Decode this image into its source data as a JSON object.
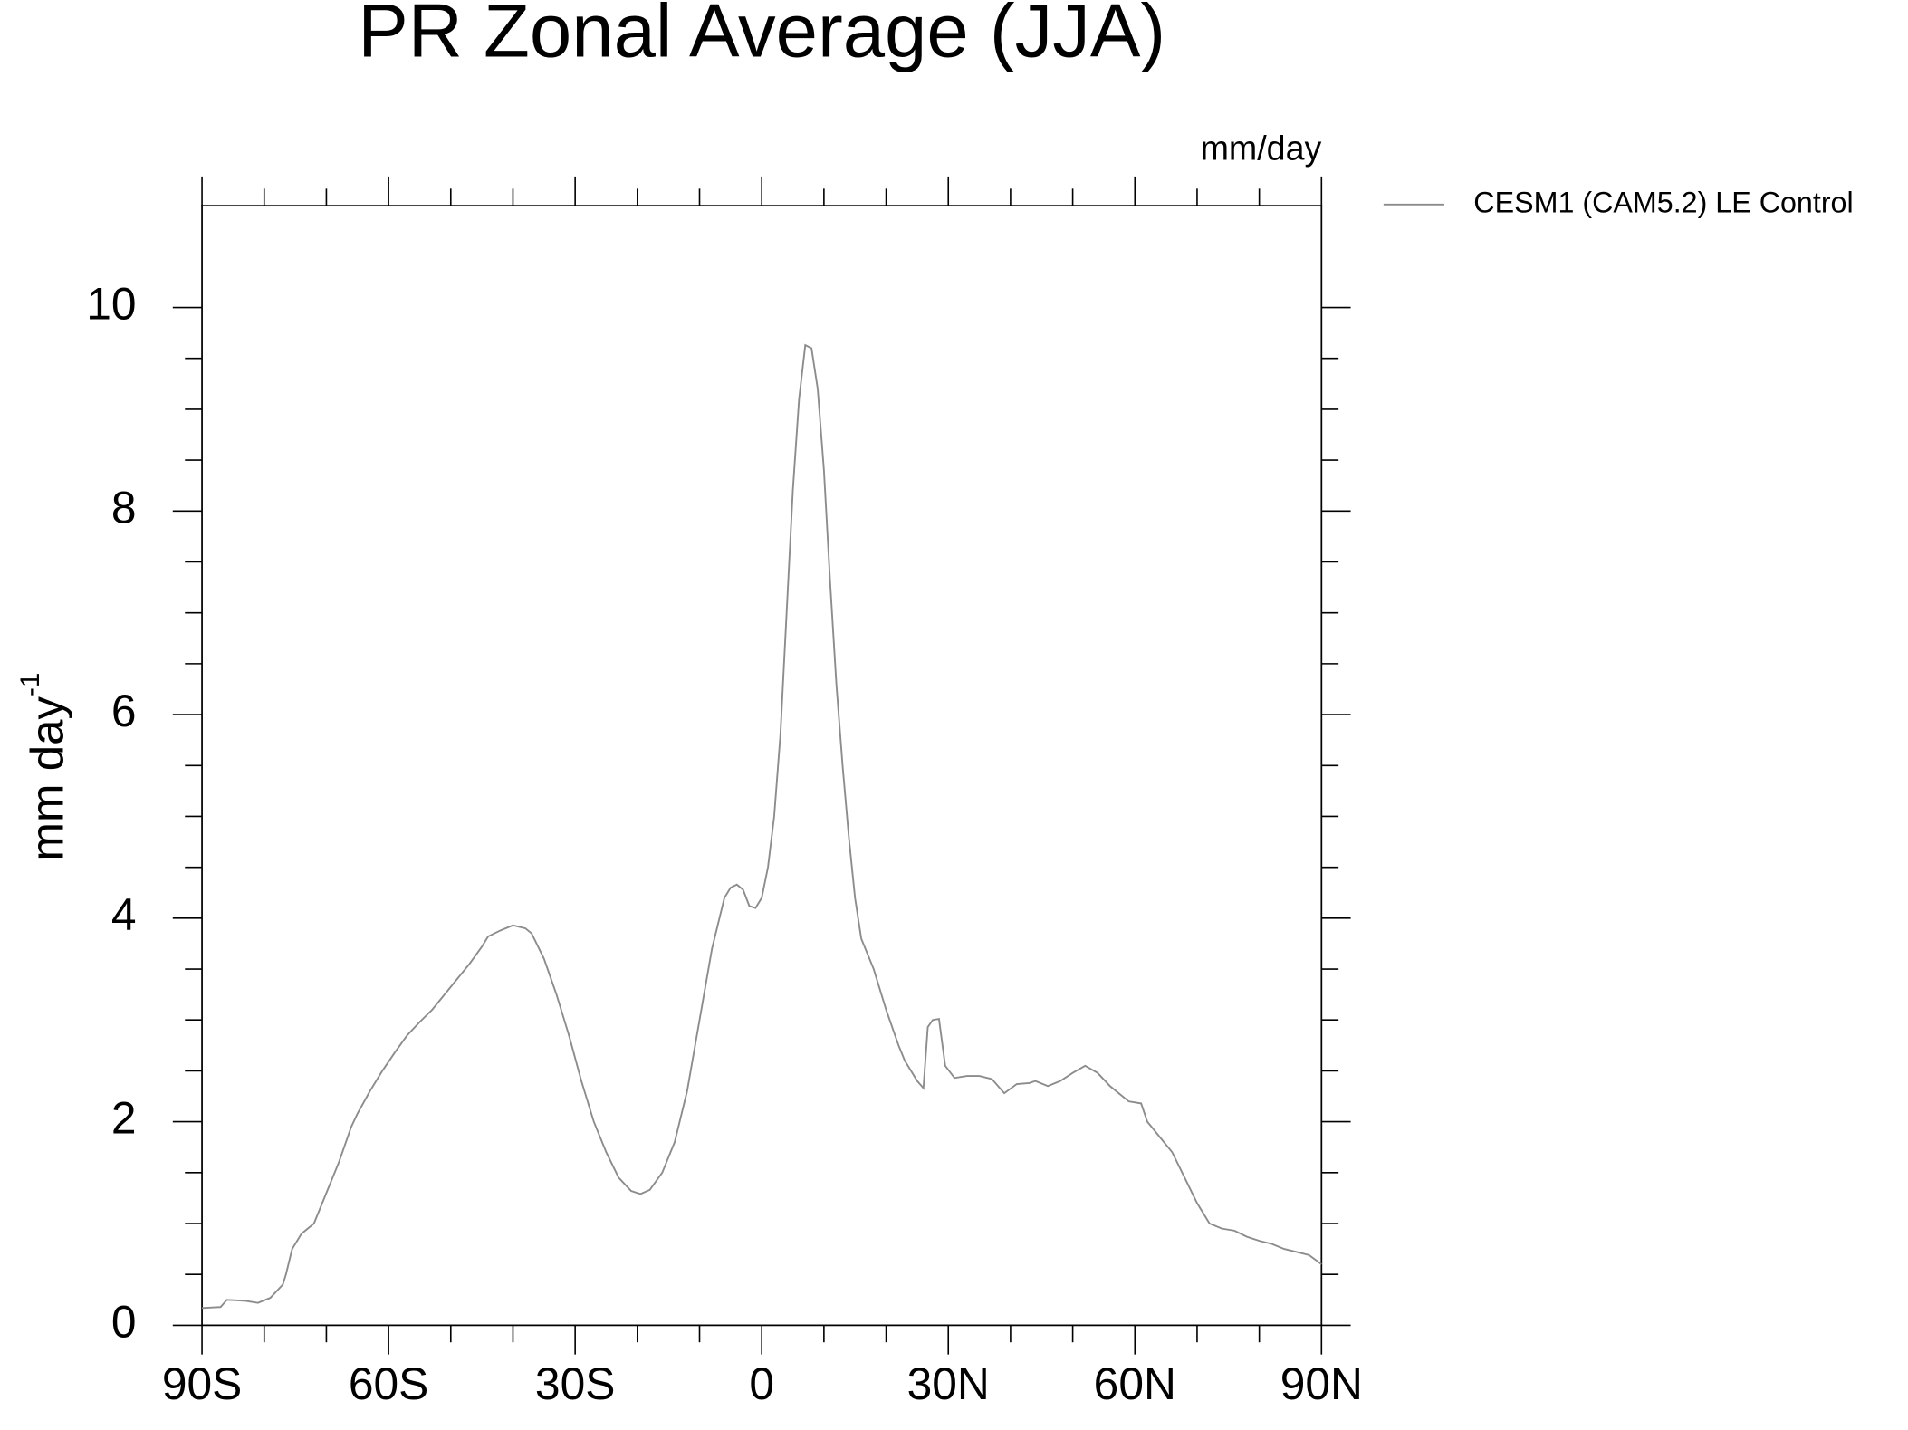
{
  "chart_data": {
    "type": "line",
    "title": "PR Zonal Average (JJA)",
    "units": "mm/day",
    "ylabel": "mm day",
    "ylabel_superscript": "-1",
    "xlim": [
      -90,
      90
    ],
    "xticks": [
      {
        "value": -90,
        "label": "90S"
      },
      {
        "value": -60,
        "label": "60S"
      },
      {
        "value": -30,
        "label": "30S"
      },
      0,
      {
        "value": 30,
        "label": "30N"
      },
      {
        "value": 60,
        "label": "60N"
      },
      {
        "value": 90,
        "label": "90N"
      }
    ],
    "ylim": [
      0,
      11
    ],
    "yticks": [
      0,
      2,
      4,
      6,
      8,
      10
    ],
    "legend": "right",
    "x": [
      -90,
      -87,
      -86,
      -83,
      -81,
      -79,
      -77,
      -76.5,
      -75.5,
      -74,
      -72,
      -70,
      -68,
      -66,
      -65,
      -63,
      -61,
      -59,
      -57,
      -55,
      -53,
      -51,
      -49,
      -47,
      -45,
      -44,
      -42,
      -40,
      -38,
      -37,
      -35,
      -33,
      -31,
      -29,
      -27,
      -25,
      -23,
      -21,
      -19.5,
      -18,
      -16,
      -14,
      -12,
      -10,
      -8,
      -6,
      -5,
      -4,
      -3,
      -2,
      -1,
      0,
      1,
      2,
      3,
      4,
      5,
      6,
      7,
      8,
      9,
      10,
      11,
      12,
      13,
      14,
      15,
      16,
      18,
      20,
      22,
      23,
      24,
      25,
      26,
      26.7,
      27.5,
      28.5,
      29.5,
      31,
      33,
      35,
      37,
      39,
      41,
      43,
      44,
      46,
      48,
      50,
      52,
      54,
      56,
      58,
      59,
      61,
      62,
      64,
      66,
      68,
      70,
      72,
      74,
      76,
      78,
      80,
      82,
      84,
      86,
      88,
      90
    ],
    "series": [
      {
        "name": "CESM1 (CAM5.2) LE Control",
        "color": "#8c8c8c",
        "values": [
          0.17,
          0.18,
          0.25,
          0.24,
          0.22,
          0.27,
          0.4,
          0.5,
          0.75,
          0.9,
          1.0,
          1.3,
          1.6,
          1.95,
          2.08,
          2.3,
          2.5,
          2.68,
          2.85,
          2.98,
          3.1,
          3.25,
          3.4,
          3.55,
          3.72,
          3.82,
          3.88,
          3.93,
          3.9,
          3.85,
          3.6,
          3.25,
          2.85,
          2.4,
          2.0,
          1.7,
          1.45,
          1.32,
          1.29,
          1.33,
          1.5,
          1.8,
          2.3,
          3.0,
          3.7,
          4.2,
          4.3,
          4.33,
          4.28,
          4.12,
          4.1,
          4.2,
          4.5,
          5.0,
          5.8,
          7.0,
          8.2,
          9.1,
          9.63,
          9.6,
          9.2,
          8.4,
          7.3,
          6.3,
          5.5,
          4.8,
          4.2,
          3.8,
          3.5,
          3.1,
          2.75,
          2.6,
          2.5,
          2.4,
          2.33,
          2.93,
          3.0,
          3.01,
          2.55,
          2.43,
          2.45,
          2.45,
          2.42,
          2.28,
          2.37,
          2.38,
          2.4,
          2.35,
          2.4,
          2.48,
          2.55,
          2.48,
          2.35,
          2.25,
          2.2,
          2.18,
          2.0,
          1.85,
          1.7,
          1.45,
          1.2,
          1.0,
          0.95,
          0.93,
          0.87,
          0.83,
          0.8,
          0.75,
          0.72,
          0.69,
          0.6
        ]
      }
    ]
  }
}
